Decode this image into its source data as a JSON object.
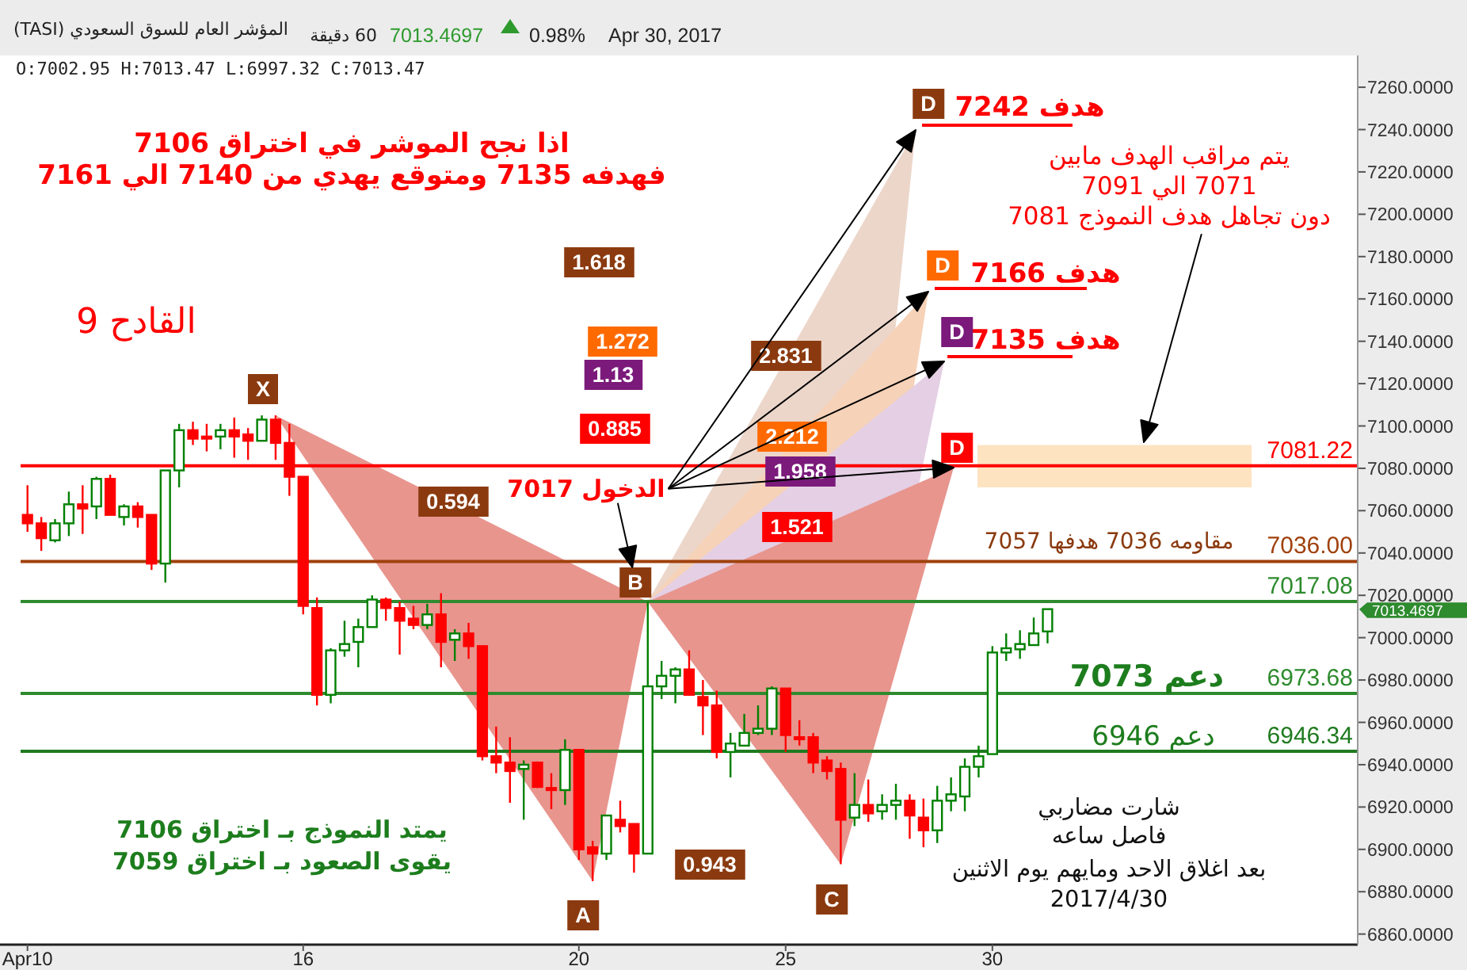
{
  "chart_data": {
    "type": "candlestick",
    "title": "المؤشر العام للسوق السعودي (TASI)",
    "subtitle": "O:7002.95  H:7013.47  L:6997.32  C:7013.47",
    "ylim": [
      6855,
      7275
    ],
    "yticks": [
      {
        "value": 6860,
        "label": "6860.0000"
      },
      {
        "value": 6880,
        "label": "6880.0000"
      },
      {
        "value": 6900,
        "label": "6900.0000"
      },
      {
        "value": 6920,
        "label": "6920.0000"
      },
      {
        "value": 6940,
        "label": "6940.0000"
      },
      {
        "value": 6960,
        "label": "6960.0000"
      },
      {
        "value": 6980,
        "label": "6980.0000"
      },
      {
        "value": 7000,
        "label": "7000.0000"
      },
      {
        "value": 7020,
        "label": "7020.0000"
      },
      {
        "value": 7040,
        "label": "7040.0000"
      },
      {
        "value": 7060,
        "label": "7060.0000"
      },
      {
        "value": 7080,
        "label": "7080.0000"
      },
      {
        "value": 7100,
        "label": "7100.0000"
      },
      {
        "value": 7120,
        "label": "7120.0000"
      },
      {
        "value": 7140,
        "label": "7140.0000"
      },
      {
        "value": 7160,
        "label": "7160.0000"
      },
      {
        "value": 7180,
        "label": "7180.0000"
      },
      {
        "value": 7200,
        "label": "7200.0000"
      },
      {
        "value": 7220,
        "label": "7220.0000"
      },
      {
        "value": 7240,
        "label": "7240.0000"
      },
      {
        "value": 7260,
        "label": "7260.0000"
      }
    ],
    "categories": [
      "Apr10",
      null,
      null,
      null,
      null,
      null,
      null,
      null,
      null,
      null,
      null,
      null,
      null,
      null,
      null,
      null,
      null,
      null,
      null,
      null,
      "16",
      null,
      null,
      null,
      null,
      null,
      null,
      null,
      null,
      null,
      null,
      null,
      null,
      null,
      null,
      null,
      null,
      null,
      null,
      null,
      "20",
      null,
      null,
      null,
      null,
      null,
      null,
      null,
      null,
      null,
      null,
      null,
      null,
      null,
      null,
      "25",
      null,
      null,
      null,
      null,
      null,
      null,
      null,
      null,
      null,
      null,
      null,
      null,
      null,
      null,
      "30",
      null,
      null,
      null,
      null,
      null,
      null,
      null,
      null,
      null,
      null,
      null,
      null,
      null,
      null,
      null,
      null,
      null,
      null,
      null,
      null,
      null,
      null,
      null,
      null,
      null,
      null
    ],
    "ohlc": [
      [
        7058,
        7072,
        7050,
        7054
      ],
      [
        7054,
        7057,
        7041,
        7047
      ],
      [
        7046,
        7056,
        7045,
        7054
      ],
      [
        7054,
        7069,
        7048,
        7063
      ],
      [
        7063,
        7072,
        7049,
        7061
      ],
      [
        7062,
        7076,
        7056,
        7075
      ],
      [
        7075,
        7077,
        7058,
        7058
      ],
      [
        7057,
        7063,
        7053,
        7062
      ],
      [
        7062,
        7064,
        7052,
        7057
      ],
      [
        7058,
        7058,
        7032,
        7035
      ],
      [
        7035,
        7079,
        7026,
        7079
      ],
      [
        7079,
        7101,
        7071,
        7098
      ],
      [
        7098,
        7102,
        7091,
        7094
      ],
      [
        7095,
        7101,
        7088,
        7094
      ],
      [
        7095,
        7101,
        7089,
        7098
      ],
      [
        7098,
        7104,
        7085,
        7095
      ],
      [
        7096,
        7099,
        7084,
        7093
      ],
      [
        7093,
        7105,
        7093,
        7103
      ],
      [
        7103,
        7105,
        7084,
        7092
      ],
      [
        7092,
        7101,
        7067,
        7076
      ],
      [
        7076,
        7076,
        7011,
        7015
      ],
      [
        7014,
        7019,
        6968,
        6973
      ],
      [
        6973,
        6995,
        6969,
        6994
      ],
      [
        6994,
        7008,
        6991,
        6997
      ],
      [
        6998,
        7009,
        6986,
        7005
      ],
      [
        7005,
        7020,
        7005,
        7018
      ],
      [
        7018,
        7019,
        7008,
        7014
      ],
      [
        7014,
        7017,
        6992,
        7008
      ],
      [
        7009,
        7015,
        7004,
        7006
      ],
      [
        7006,
        7016,
        7004,
        7011
      ],
      [
        7011,
        7021,
        6986,
        6998
      ],
      [
        6999,
        7004,
        6989,
        7002
      ],
      [
        7002,
        7007,
        6990,
        6996
      ],
      [
        6996,
        6996,
        6942,
        6944
      ],
      [
        6944,
        6958,
        6936,
        6941
      ],
      [
        6941,
        6953,
        6922,
        6937
      ],
      [
        6938,
        6942,
        6914,
        6940
      ],
      [
        6941,
        6941.5,
        6929,
        6929.5
      ],
      [
        6929,
        6936,
        6919,
        6928
      ],
      [
        6928,
        6952,
        6921,
        6947
      ],
      [
        6947,
        6947,
        6895,
        6900
      ],
      [
        6901,
        6904,
        6885,
        6898
      ],
      [
        6898,
        6916,
        6895,
        6916
      ],
      [
        6914,
        6923,
        6908,
        6911
      ],
      [
        6912,
        6912,
        6889,
        6898
      ],
      [
        6898,
        7017,
        6898,
        6977
      ],
      [
        6977,
        6989,
        6971,
        6982
      ],
      [
        6982,
        6986,
        6969,
        6985
      ],
      [
        6985,
        6994,
        6973,
        6973
      ],
      [
        6972,
        6980,
        6954,
        6968
      ],
      [
        6968,
        6975,
        6943,
        6946
      ],
      [
        6946,
        6955,
        6934,
        6950
      ],
      [
        6949,
        6964,
        6949,
        6955
      ],
      [
        6955,
        6968,
        6954,
        6957
      ],
      [
        6957,
        6977,
        6954,
        6976
      ],
      [
        6976,
        6976,
        6946,
        6954
      ],
      [
        6953,
        6961,
        6949,
        6952
      ],
      [
        6953,
        6955,
        6936,
        6941
      ],
      [
        6942,
        6944,
        6933,
        6937
      ],
      [
        6938,
        6941,
        6893,
        6914
      ],
      [
        6915,
        6936,
        6911,
        6921
      ],
      [
        6921,
        6933,
        6913,
        6917
      ],
      [
        6918,
        6926,
        6914,
        6921
      ],
      [
        6921,
        6931,
        6914,
        6923
      ],
      [
        6923,
        6926,
        6905,
        6916
      ],
      [
        6915,
        6924,
        6901,
        6909
      ],
      [
        6909,
        6930,
        6903,
        6923
      ],
      [
        6923,
        6934,
        6918,
        6926
      ],
      [
        6925,
        6943,
        6918,
        6939
      ],
      [
        6939,
        6949,
        6934,
        6944
      ],
      [
        6945,
        6996,
        6945,
        6993
      ],
      [
        6993,
        7002,
        6989,
        6995
      ],
      [
        6994.5,
        7003.5,
        6990,
        6997
      ],
      [
        6996.5,
        7009.5,
        6996.5,
        7002
      ],
      [
        7002.95,
        7013.47,
        6997.32,
        7013.47
      ],
      null,
      null,
      null,
      null,
      null,
      null,
      null,
      null,
      null,
      null,
      null,
      null,
      null,
      null,
      null,
      null,
      null,
      null,
      null,
      null,
      null,
      null
    ],
    "colors": [
      "#ff0000",
      "#ff0000",
      "#008000",
      "#008000",
      "#ff0000",
      "#008000",
      "#ff0000",
      "#008000",
      "#ff0000",
      "#ff0000",
      "#008000",
      "#008000",
      "#ff0000",
      "#ff0000",
      "#008000",
      "#ff0000",
      "#ff0000",
      "#008000",
      "#ff0000",
      "#ff0000",
      "#ff0000",
      "#ff0000",
      "#008000",
      "#008000",
      "#008000",
      "#008000",
      "#ff0000",
      "#ff0000",
      "#ff0000",
      "#008000",
      "#ff0000",
      "#008000",
      "#ff0000",
      "#ff0000",
      "#ff0000",
      "#ff0000",
      "#008000",
      "#ff0000",
      "#ff0000",
      "#008000",
      "#ff0000",
      "#ff0000",
      "#008000",
      "#ff0000",
      "#ff0000",
      "#008000",
      "#008000",
      "#008000",
      "#ff0000",
      "#ff0000",
      "#ff0000",
      "#008000",
      "#008000",
      "#008000",
      "#008000",
      "#ff0000",
      "#ff0000",
      "#ff0000",
      "#ff0000",
      "#ff0000",
      "#008000",
      "#ff0000",
      "#008000",
      "#008000",
      "#ff0000",
      "#ff0000",
      "#008000",
      "#008000",
      "#008000",
      "#008000",
      "#008000",
      "#008000",
      "#008000",
      "#008000",
      "#008000",
      null,
      null,
      null,
      null,
      null,
      null,
      null,
      null,
      null,
      null,
      null,
      null,
      null,
      null,
      null,
      null,
      null,
      null,
      null,
      null,
      null,
      null
    ],
    "bands": [
      {
        "axis": "y",
        "from": 7071,
        "to": 7091,
        "color": "#fde3c0"
      }
    ],
    "ref_lines": [
      {
        "axis": "y",
        "value": 7081.22,
        "label": "7081.22",
        "color": "#ff0000"
      },
      {
        "axis": "y",
        "value": 7036,
        "label": "7036.00",
        "color": "#a0410d"
      },
      {
        "axis": "y",
        "value": 7017.08,
        "label": "7017.08",
        "color": "#2e8b2e"
      },
      {
        "axis": "y",
        "value": 6973.68,
        "label": "6973.68",
        "color": "#2e8b2e"
      },
      {
        "axis": "y",
        "value": 6946.34,
        "label": "6946.34",
        "color": "#1f7a1f"
      }
    ],
    "annotations": [
      "Apr 30, 2017",
      "0.98%",
      "7013.4697",
      "60 دقيقة",
      "اذا نجح الموشر في اختراق 7106",
      "فهدفه 7135 ومتوقع يهدي من 7140 الي 7161",
      "القادح 9",
      "يتم مراقب الهدف مابين",
      "7071 الي 7091",
      "دون تجاهل هدف النموذج 7081",
      "هدف 7242",
      "هدف 7166",
      "هدف 7135",
      "X",
      "A",
      "B",
      "C",
      "D",
      "D",
      "D",
      "D",
      "0.594",
      "0.943",
      "1.618",
      "1.272",
      "1.13",
      "0.885",
      "2.831",
      "2.212",
      "1.958",
      "1.521",
      "الدخول 7017",
      "مقاومه 7036 هدفها 7057",
      "دعم 7073",
      "دعم 6946",
      "يمتد النموذج بـ اختراق 7106",
      "يقوى الصعود بـ اختراق 7059",
      "شارت مضاربي",
      "فاصل ساعه",
      "بعد اغلاق الاحد ومايهم يوم الاثنين",
      "2017/4/30",
      "7013.4697"
    ]
  }
}
